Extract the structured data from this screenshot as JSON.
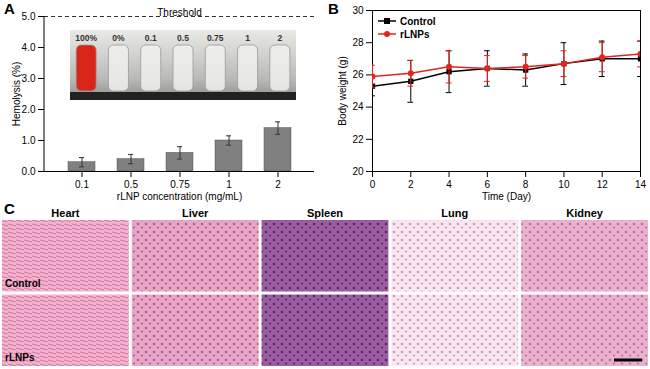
{
  "chart_data": [
    {
      "panel": "A",
      "type": "bar",
      "categories": [
        "0.1",
        "0.5",
        "0.75",
        "1",
        "2"
      ],
      "values": [
        0.3,
        0.4,
        0.6,
        1.0,
        1.4
      ],
      "errors": [
        0.15,
        0.15,
        0.2,
        0.15,
        0.2
      ],
      "color": "#808080",
      "xlabel": "rLNP concentration (mg/mL)",
      "ylabel": "Hemolysis (%)",
      "ylim": [
        0,
        5
      ],
      "yticks": [
        0,
        1,
        2,
        3,
        4,
        5
      ],
      "annotations": [
        {
          "y": 5,
          "text": "Threshold"
        }
      ],
      "inset": {
        "labels": [
          "100%",
          "0%",
          "0.1",
          "0.5",
          "0.75",
          "1",
          "2"
        ]
      }
    },
    {
      "panel": "B",
      "type": "line",
      "x": [
        0,
        2,
        4,
        6,
        8,
        10,
        12,
        14
      ],
      "xlim": [
        0,
        14
      ],
      "xticks": [
        0,
        2,
        4,
        6,
        8,
        10,
        12,
        14
      ],
      "ylim": [
        20,
        30
      ],
      "yticks": [
        20,
        22,
        24,
        26,
        28,
        30
      ],
      "xlabel": "Time (Day)",
      "ylabel": "Body weight (g)",
      "legend": "upper left",
      "series": [
        {
          "name": "Control",
          "color": "#000000",
          "marker": "square",
          "values": [
            25.3,
            25.6,
            26.2,
            26.4,
            26.3,
            26.7,
            27.0,
            27.0
          ],
          "errors": [
            0.6,
            1.3,
            1.3,
            1.1,
            1.0,
            1.3,
            1.1,
            1.1
          ]
        },
        {
          "name": "rLNPs",
          "color": "#e8231c",
          "marker": "circle",
          "values": [
            25.9,
            26.1,
            26.5,
            26.4,
            26.5,
            26.7,
            27.1,
            27.3
          ],
          "errors": [
            0.7,
            0.8,
            1.0,
            0.8,
            0.7,
            0.8,
            0.9,
            0.8
          ]
        }
      ]
    }
  ],
  "histology": {
    "panel": "C",
    "tissues": [
      "Heart",
      "Liver",
      "Spleen",
      "Lung",
      "Kidney"
    ],
    "groups": [
      "Control",
      "rLNPs"
    ]
  }
}
